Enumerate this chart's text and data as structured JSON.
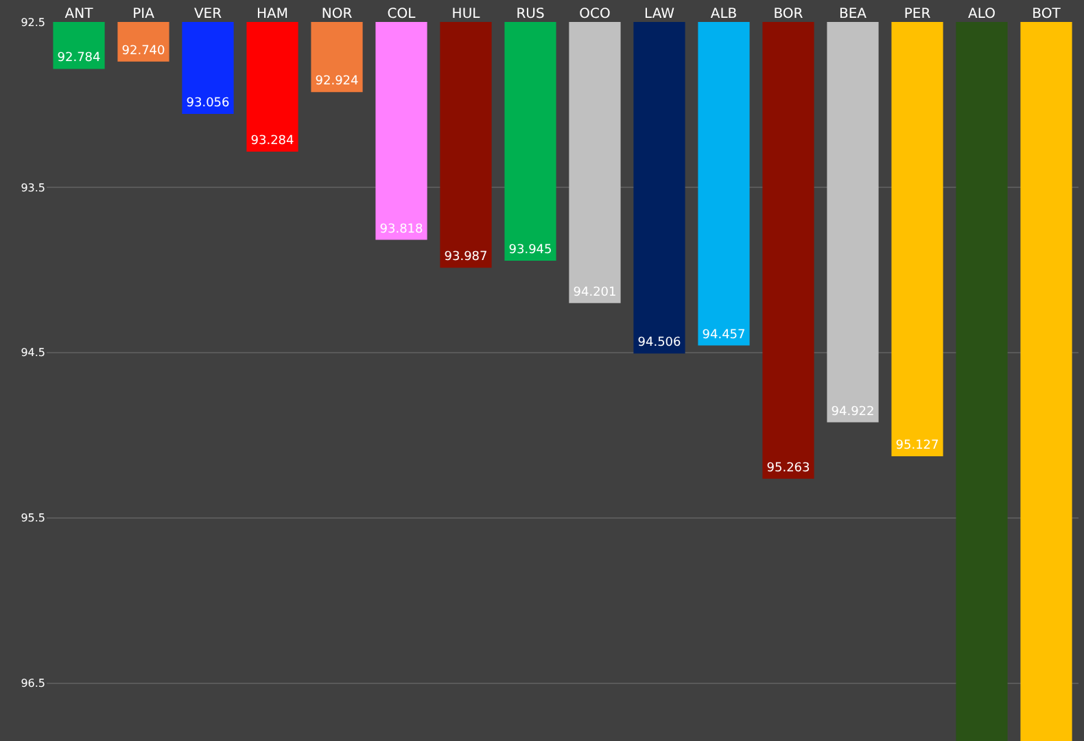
{
  "chart_data": {
    "type": "bar",
    "categories": [
      "ANT",
      "PIA",
      "VER",
      "HAM",
      "NOR",
      "COL",
      "HUL",
      "RUS",
      "OCO",
      "LAW",
      "ALB",
      "BOR",
      "BEA",
      "PER",
      "ALO",
      "BOT"
    ],
    "values": [
      92.784,
      92.74,
      93.056,
      93.284,
      92.924,
      93.818,
      93.987,
      93.945,
      94.201,
      94.506,
      94.457,
      95.263,
      94.922,
      95.127,
      96.85,
      96.85
    ],
    "value_labels": [
      "92.784",
      "92.740",
      "93.056",
      "93.284",
      "92.924",
      "93.818",
      "93.987",
      "93.945",
      "94.201",
      "94.506",
      "94.457",
      "95.263",
      "94.922",
      "95.127",
      null,
      null
    ],
    "colors": [
      "#00b050",
      "#f07a3a",
      "#0a2cff",
      "#ff0000",
      "#f07a3a",
      "#ff80ff",
      "#8b0e00",
      "#00b050",
      "#c0c0c0",
      "#002060",
      "#00b0f0",
      "#8b0e00",
      "#c0c0c0",
      "#ffc000",
      "#2a5216",
      "#ffc000"
    ],
    "ylim": [
      96.85,
      92.5
    ],
    "yticks": [
      92.5,
      93.5,
      94.5,
      95.5,
      96.5
    ],
    "grid": "y"
  }
}
